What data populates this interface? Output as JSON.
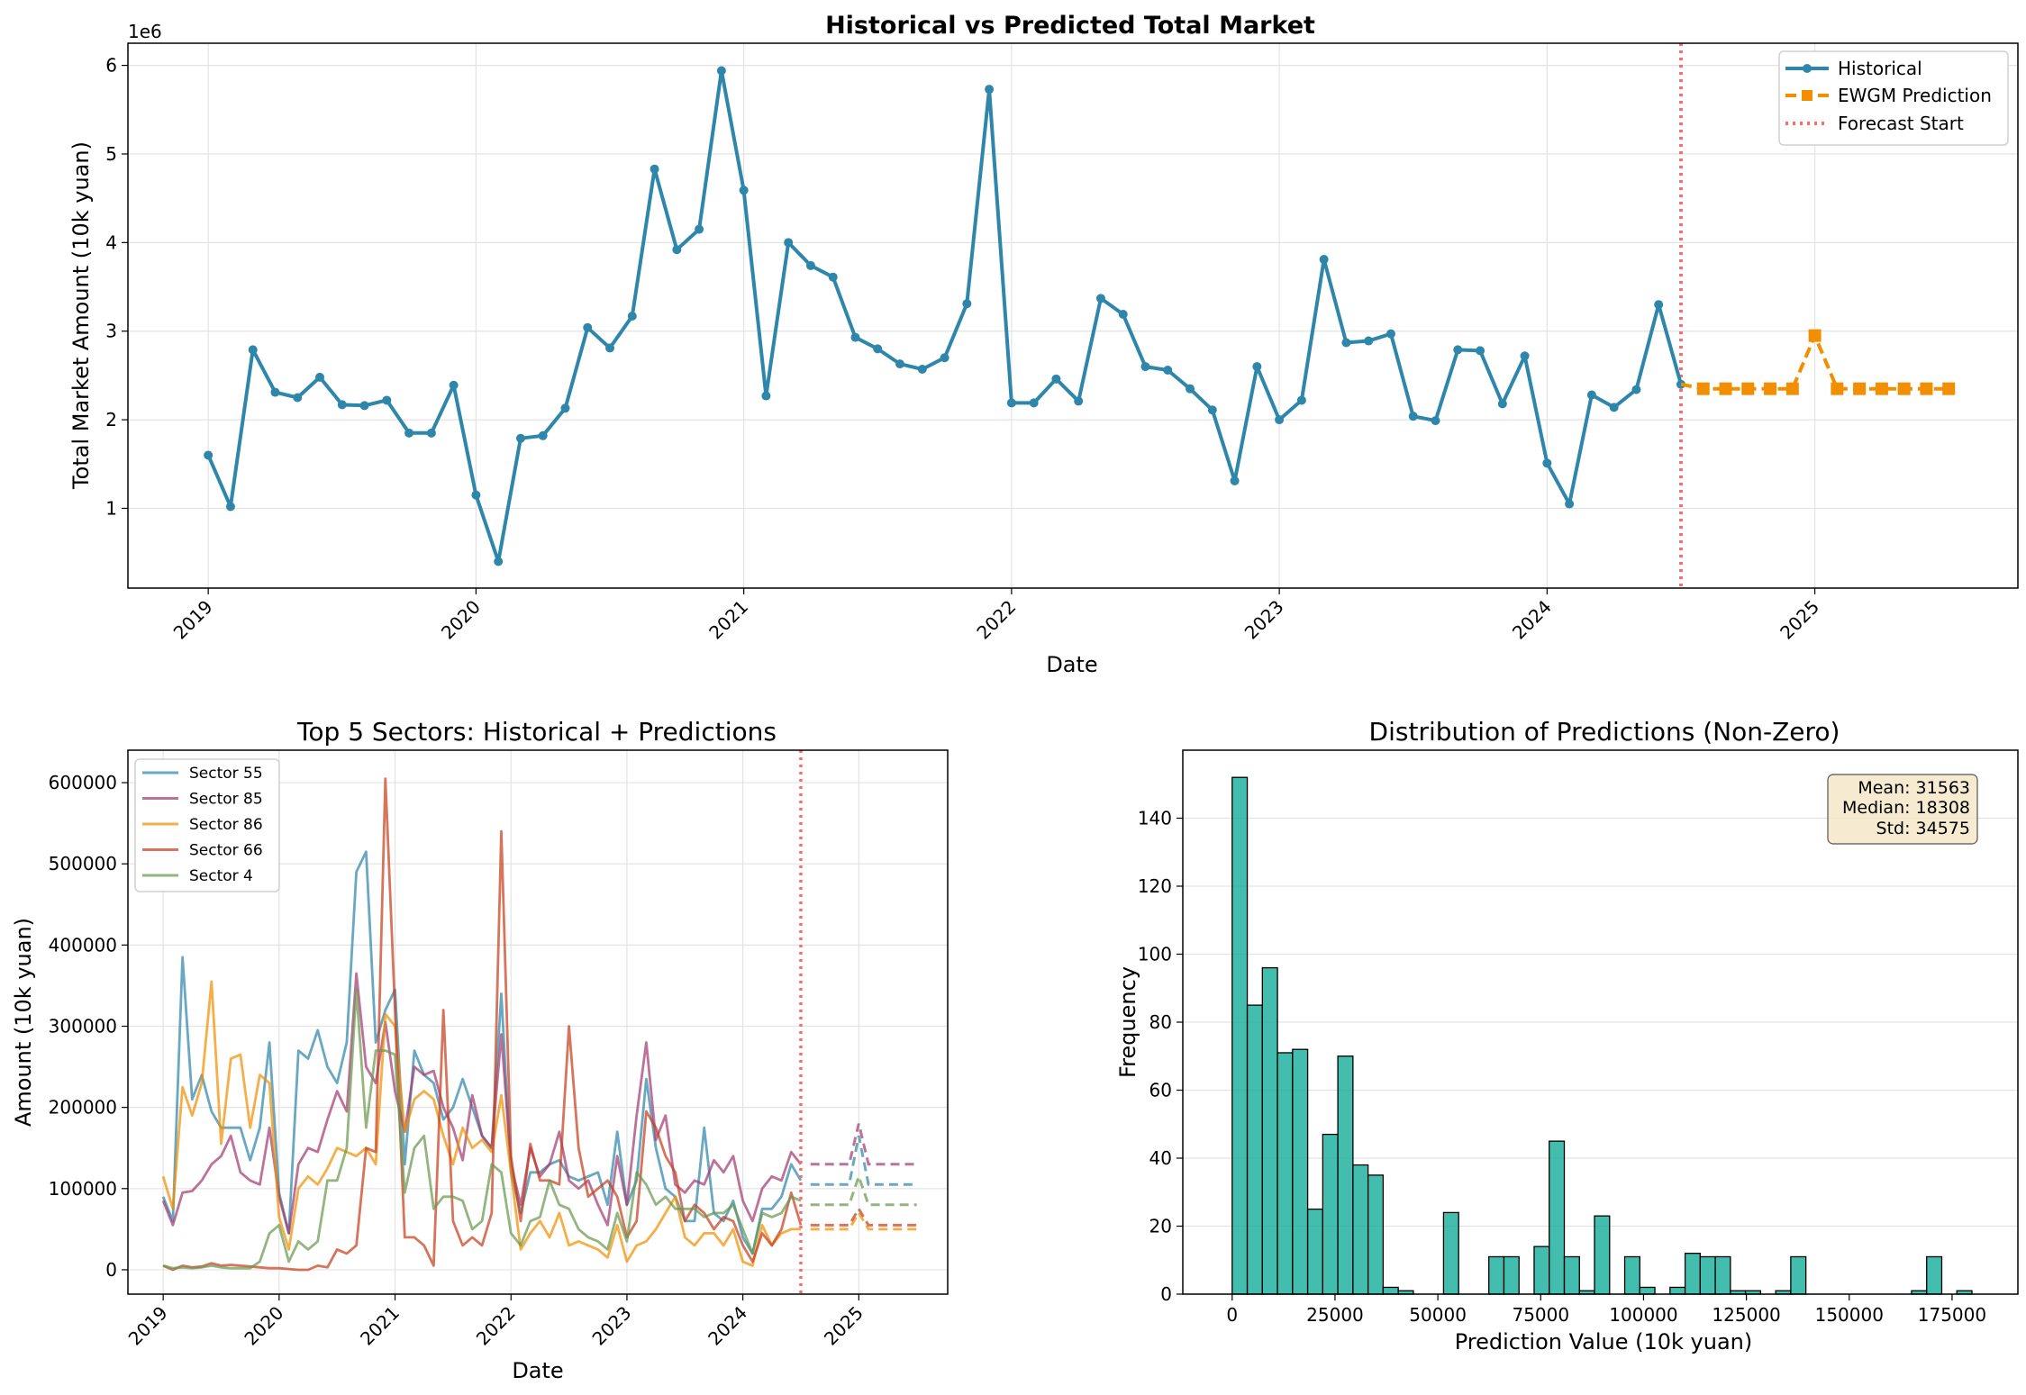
{
  "chart_data": [
    {
      "type": "line",
      "title": "Historical vs Predicted Total Market",
      "xlabel": "Date",
      "ylabel": "Total Market Amount (10k yuan)",
      "y_offset_label": "1e6",
      "ylim": [
        0.1,
        6.25
      ],
      "xlim": [
        "2018-09",
        "2025-10"
      ],
      "x_ticks": [
        "2019",
        "2020",
        "2021",
        "2022",
        "2023",
        "2024",
        "2025"
      ],
      "y_ticks": [
        "1",
        "2",
        "3",
        "4",
        "5",
        "6"
      ],
      "grid": true,
      "legend_position": "top-right",
      "colors": {
        "historical": "#2e86ab",
        "prediction": "#f18f01",
        "forecast_start": "#ff6b6b"
      },
      "legend": [
        "Historical",
        "EWGM Prediction",
        "Forecast Start"
      ],
      "forecast_start": "2024-07",
      "series": [
        {
          "name": "Historical",
          "start": "2019-01",
          "values": [
            1.6,
            1.02,
            2.79,
            2.31,
            2.25,
            2.48,
            2.17,
            2.16,
            2.22,
            1.85,
            1.85,
            2.39,
            1.15,
            0.4,
            1.79,
            1.82,
            2.13,
            3.04,
            2.81,
            3.17,
            4.83,
            3.92,
            4.15,
            5.94,
            4.59,
            2.27,
            4.0,
            3.74,
            3.61,
            2.93,
            2.8,
            2.63,
            2.57,
            2.7,
            3.31,
            5.73,
            2.19,
            2.19,
            2.46,
            2.21,
            3.37,
            3.19,
            2.6,
            2.56,
            2.35,
            2.11,
            1.31,
            2.6,
            2.0,
            2.22,
            3.81,
            2.87,
            2.89,
            2.97,
            2.04,
            1.99,
            2.79,
            2.78,
            2.18,
            2.72,
            1.51,
            1.05,
            2.28,
            2.14,
            2.34,
            3.3,
            2.4
          ]
        },
        {
          "name": "EWGM Prediction",
          "start": "2024-07",
          "values": [
            2.4,
            2.35,
            2.35,
            2.35,
            2.35,
            2.35,
            2.95,
            2.35,
            2.35,
            2.35,
            2.35,
            2.35,
            2.35
          ]
        }
      ]
    },
    {
      "type": "line",
      "title": "Top 5 Sectors: Historical + Predictions",
      "xlabel": "Date",
      "ylabel": "Amount (10k yuan)",
      "ylim": [
        -30000,
        640000
      ],
      "xlim": [
        "2018-09",
        "2025-10"
      ],
      "x_ticks": [
        "2019",
        "2020",
        "2021",
        "2022",
        "2023",
        "2024",
        "2025"
      ],
      "y_ticks": [
        "0",
        "100000",
        "200000",
        "300000",
        "400000",
        "500000",
        "600000"
      ],
      "grid": true,
      "legend_position": "top-left",
      "forecast_start": "2024-07",
      "series": [
        {
          "name": "Sector 55",
          "color": "#2e86ab",
          "values": [
            90000,
            60000,
            385000,
            210000,
            240000,
            195000,
            175000,
            175000,
            175000,
            135000,
            175000,
            280000,
            95000,
            45000,
            270000,
            260000,
            295000,
            250000,
            230000,
            280000,
            490000,
            515000,
            280000,
            320000,
            345000,
            130000,
            270000,
            240000,
            230000,
            185000,
            200000,
            235000,
            200000,
            165000,
            150000,
            340000,
            120000,
            70000,
            120000,
            120000,
            130000,
            135000,
            115000,
            110000,
            115000,
            120000,
            80000,
            170000,
            80000,
            110000,
            235000,
            150000,
            100000,
            90000,
            60000,
            60000,
            175000,
            70000,
            60000,
            85000,
            40000,
            20000,
            75000,
            75000,
            90000,
            130000,
            110000
          ],
          "pred": [
            105000,
            105000,
            105000,
            105000,
            105000,
            165000,
            105000,
            105000,
            105000,
            105000,
            105000,
            105000
          ]
        },
        {
          "name": "Sector 85",
          "color": "#a23b72",
          "values": [
            85000,
            55000,
            95000,
            97000,
            110000,
            130000,
            140000,
            165000,
            120000,
            110000,
            105000,
            175000,
            90000,
            45000,
            130000,
            150000,
            145000,
            185000,
            220000,
            195000,
            365000,
            250000,
            230000,
            305000,
            220000,
            170000,
            250000,
            240000,
            245000,
            200000,
            175000,
            135000,
            215000,
            165000,
            150000,
            290000,
            130000,
            80000,
            150000,
            115000,
            130000,
            170000,
            110000,
            100000,
            110000,
            80000,
            55000,
            140000,
            80000,
            190000,
            280000,
            160000,
            190000,
            105000,
            95000,
            110000,
            105000,
            135000,
            120000,
            140000,
            85000,
            60000,
            100000,
            115000,
            110000,
            145000,
            130000
          ],
          "pred": [
            130000,
            130000,
            130000,
            130000,
            130000,
            180000,
            130000,
            130000,
            130000,
            130000,
            130000,
            130000
          ]
        },
        {
          "name": "Sector 86",
          "color": "#f18f01",
          "values": [
            115000,
            75000,
            225000,
            190000,
            230000,
            355000,
            155000,
            260000,
            265000,
            175000,
            240000,
            230000,
            65000,
            25000,
            100000,
            115000,
            105000,
            125000,
            150000,
            145000,
            140000,
            150000,
            130000,
            315000,
            300000,
            170000,
            210000,
            220000,
            210000,
            165000,
            130000,
            175000,
            150000,
            160000,
            145000,
            215000,
            120000,
            25000,
            45000,
            60000,
            40000,
            70000,
            30000,
            35000,
            30000,
            25000,
            15000,
            55000,
            10000,
            30000,
            35000,
            50000,
            70000,
            90000,
            40000,
            30000,
            45000,
            45000,
            30000,
            50000,
            10000,
            5000,
            55000,
            30000,
            45000,
            50000,
            50000
          ],
          "pred": [
            50000,
            50000,
            50000,
            50000,
            50000,
            70000,
            50000,
            50000,
            50000,
            50000,
            50000,
            50000
          ]
        },
        {
          "name": "Sector 66",
          "color": "#c73e1d",
          "values": [
            5000,
            0,
            5000,
            3000,
            4000,
            8000,
            5000,
            6000,
            5000,
            4000,
            3000,
            2000,
            2000,
            1000,
            0,
            0,
            5000,
            3000,
            25000,
            20000,
            30000,
            150000,
            145000,
            605000,
            320000,
            40000,
            40000,
            30000,
            5000,
            320000,
            60000,
            30000,
            40000,
            30000,
            70000,
            540000,
            140000,
            60000,
            155000,
            110000,
            110000,
            105000,
            300000,
            150000,
            90000,
            100000,
            110000,
            90000,
            40000,
            60000,
            195000,
            175000,
            140000,
            120000,
            60000,
            80000,
            70000,
            50000,
            65000,
            60000,
            30000,
            10000,
            45000,
            30000,
            50000,
            95000,
            55000
          ],
          "pred": [
            55000,
            55000,
            55000,
            55000,
            55000,
            75000,
            55000,
            55000,
            55000,
            55000,
            55000,
            55000
          ]
        },
        {
          "name": "Sector 4",
          "color": "#6a994e",
          "values": [
            5000,
            2000,
            3000,
            2000,
            3000,
            5000,
            3000,
            2000,
            2000,
            2000,
            10000,
            45000,
            55000,
            10000,
            35000,
            25000,
            35000,
            110000,
            110000,
            150000,
            345000,
            175000,
            270000,
            270000,
            265000,
            95000,
            150000,
            165000,
            75000,
            90000,
            90000,
            85000,
            50000,
            60000,
            130000,
            120000,
            45000,
            30000,
            60000,
            65000,
            110000,
            80000,
            75000,
            50000,
            40000,
            35000,
            25000,
            70000,
            35000,
            120000,
            105000,
            80000,
            90000,
            75000,
            75000,
            75000,
            65000,
            70000,
            70000,
            80000,
            50000,
            20000,
            70000,
            65000,
            70000,
            90000,
            85000
          ],
          "pred": [
            80000,
            80000,
            80000,
            80000,
            80000,
            115000,
            80000,
            80000,
            80000,
            80000,
            80000,
            80000
          ]
        }
      ]
    },
    {
      "type": "bar",
      "title": "Distribution of Predictions (Non-Zero)",
      "xlabel": "Prediction Value (10k yuan)",
      "ylabel": "Frequency",
      "xlim": [
        -12000,
        191000
      ],
      "ylim": [
        0,
        160
      ],
      "x_ticks": [
        "0",
        "25000",
        "50000",
        "75000",
        "100000",
        "125000",
        "150000",
        "175000"
      ],
      "y_ticks": [
        "0",
        "20",
        "40",
        "60",
        "80",
        "100",
        "120",
        "140"
      ],
      "grid": true,
      "color": "#1aaf9b",
      "stats": {
        "mean": "Mean: 31563",
        "median": "Median: 18308",
        "std": "Std: 34575"
      },
      "bin_start": 0,
      "bin_width": 3670,
      "frequencies": [
        152,
        85,
        96,
        71,
        72,
        25,
        47,
        70,
        38,
        35,
        2,
        1,
        0,
        0,
        24,
        0,
        0,
        11,
        11,
        0,
        14,
        45,
        11,
        1,
        23,
        0,
        11,
        2,
        0,
        2,
        12,
        11,
        11,
        1,
        1,
        0,
        1,
        11,
        0,
        0,
        0,
        0,
        0,
        0,
        0,
        1,
        11,
        0,
        1,
        0,
        0,
        0,
        0,
        0,
        1,
        0,
        0,
        0,
        0,
        0,
        0,
        0,
        0,
        0,
        0,
        0,
        0,
        0,
        0,
        0,
        0,
        0,
        0,
        0,
        0,
        0,
        0,
        0,
        0,
        0,
        0,
        0,
        0,
        0,
        0,
        0,
        0,
        0,
        0,
        0,
        0,
        0,
        0,
        0,
        0,
        0,
        0,
        0,
        0,
        0
      ]
    }
  ]
}
